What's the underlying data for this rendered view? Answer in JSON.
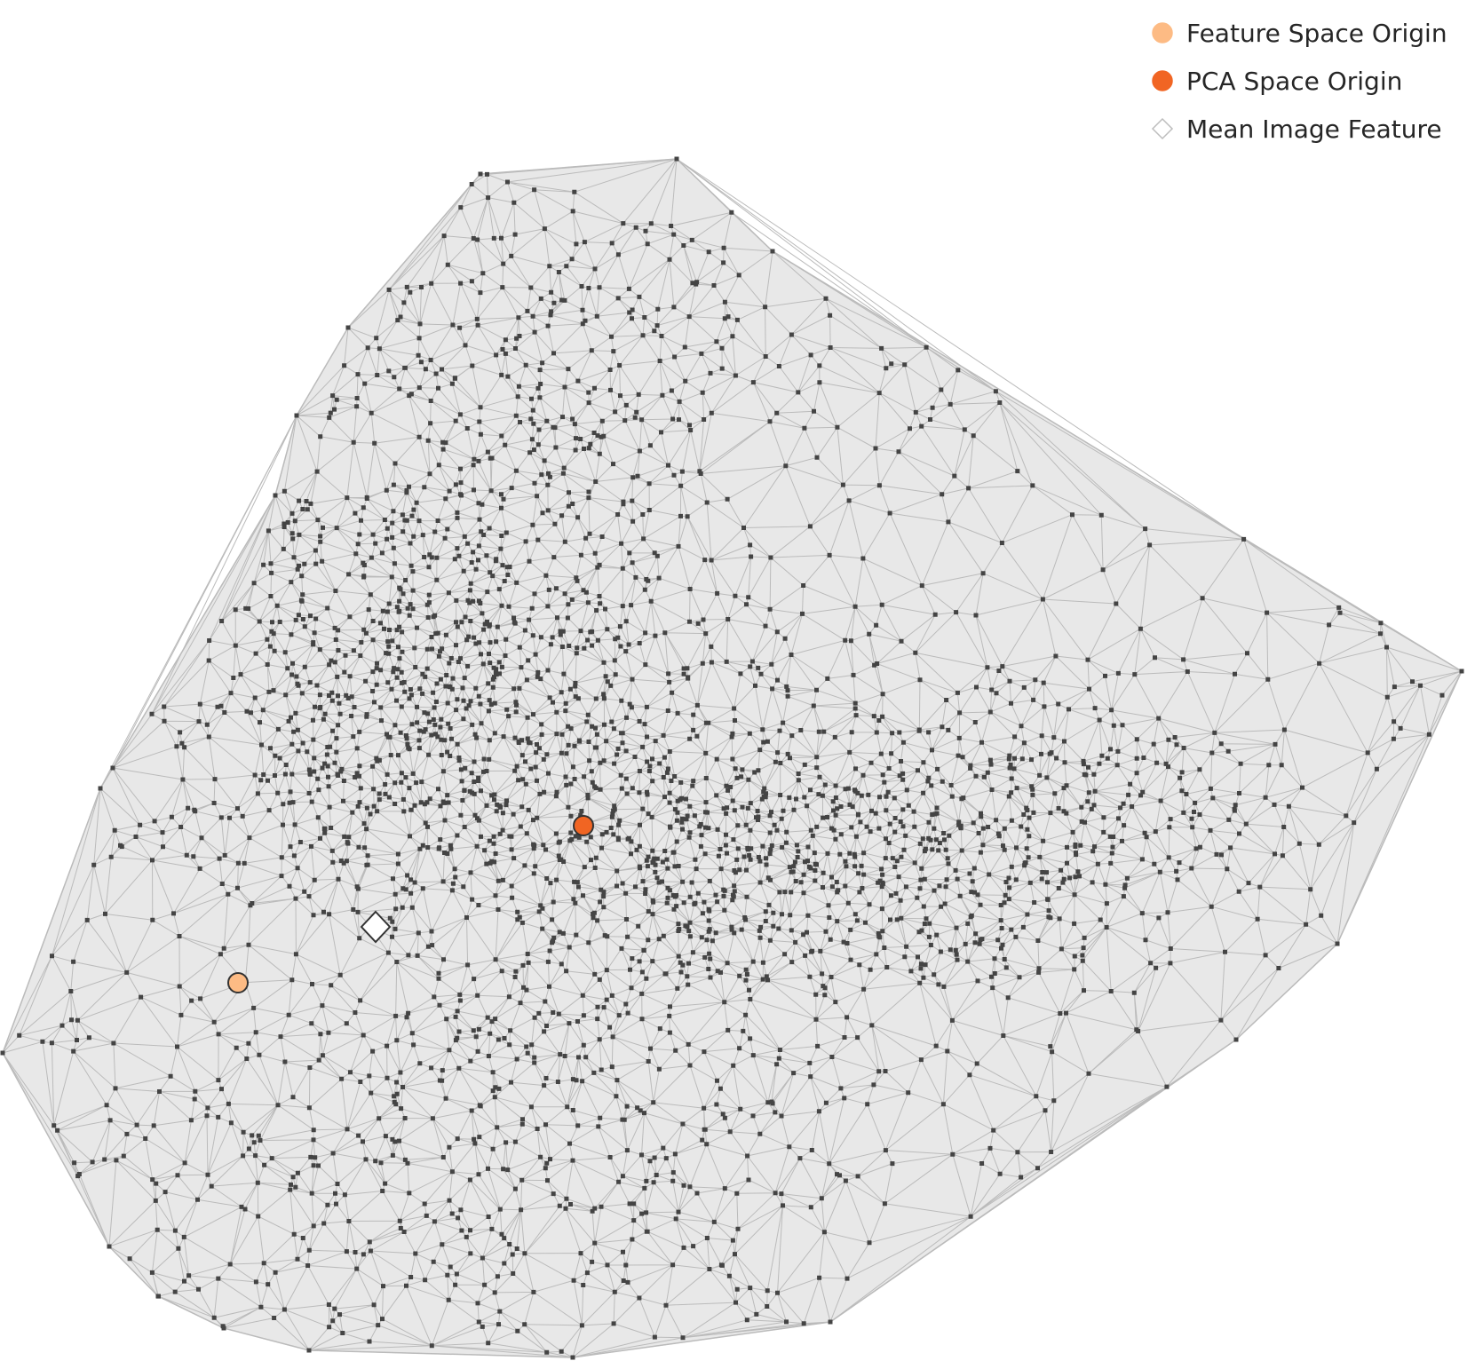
{
  "legend": {
    "items": [
      {
        "label": "Feature Space Origin",
        "marker": "circle",
        "color": "#fdbb84"
      },
      {
        "label": "PCA Space Origin",
        "marker": "circle",
        "color": "#f16523"
      },
      {
        "label": "Mean Image Feature",
        "marker": "diamond",
        "color": "#ffffff"
      }
    ]
  },
  "colors": {
    "hull_fill": "#e8e8e8",
    "edge": "#bbbbbb",
    "node": "#444444",
    "marker_edge": "#333333"
  }
}
